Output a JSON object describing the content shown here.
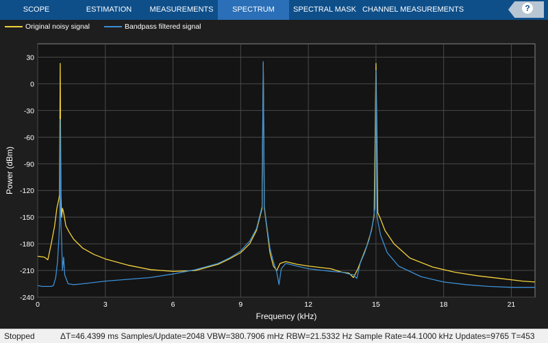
{
  "tabs": [
    {
      "label": "SCOPE",
      "active": false
    },
    {
      "label": "ESTIMATION",
      "active": false
    },
    {
      "label": "MEASUREMENTS",
      "active": false
    },
    {
      "label": "SPECTRUM",
      "active": true
    },
    {
      "label": "SPECTRAL MASK",
      "active": false
    },
    {
      "label": "CHANNEL MEASUREMENTS",
      "active": false
    }
  ],
  "help": {
    "label": "?"
  },
  "legend": [
    {
      "name": "Original noisy signal",
      "color": "#f5d33c"
    },
    {
      "name": "Bandpass filtered signal",
      "color": "#3d8fd6"
    }
  ],
  "status": {
    "state": "Stopped",
    "readout": "ΔT=46.4399 ms  Samples/Update=2048  VBW=380.7906 mHz  RBW=21.5332 Hz  Sample Rate=44.1000 kHz  Updates=9765  T=453"
  },
  "chart_data": {
    "type": "line",
    "title": "",
    "xlabel": "Frequency (kHz)",
    "ylabel": "Power (dBm)",
    "xlim": [
      0,
      22.05
    ],
    "ylim": [
      -240,
      45
    ],
    "xticks": [
      0,
      3,
      6,
      9,
      12,
      15,
      18,
      21
    ],
    "yticks": [
      30,
      0,
      -30,
      -60,
      -90,
      -120,
      -150,
      -180,
      -210,
      -240
    ],
    "grid": true,
    "legend": "top-left",
    "series": [
      {
        "name": "Original noisy signal",
        "color": "#f5d33c",
        "x": [
          0,
          0.3,
          0.45,
          0.6,
          0.75,
          0.85,
          0.92,
          0.97,
          1.0,
          1.03,
          1.06,
          1.1,
          1.15,
          1.25,
          1.4,
          1.6,
          2.0,
          2.5,
          3.0,
          4.0,
          5.0,
          6.0,
          7.0,
          8.0,
          8.5,
          9.0,
          9.4,
          9.7,
          9.85,
          9.95,
          10.0,
          10.05,
          10.15,
          10.3,
          10.45,
          10.6,
          10.75,
          11.0,
          11.5,
          12.0,
          13.0,
          13.5,
          13.8,
          14.0,
          14.2,
          14.4,
          14.6,
          14.8,
          14.92,
          15.0,
          15.08,
          15.2,
          15.4,
          15.8,
          16.5,
          17.5,
          18.5,
          19.5,
          20.5,
          21.5,
          22.05
        ],
        "y": [
          -194,
          -195,
          -198,
          -180,
          -160,
          -140,
          -132,
          -125,
          23,
          -125,
          -150,
          -140,
          -145,
          -160,
          -167,
          -175,
          -185,
          -192,
          -197,
          -204,
          -209,
          -211,
          -210,
          -203,
          -197,
          -190,
          -180,
          -165,
          -150,
          -140,
          23,
          -140,
          -160,
          -190,
          -205,
          -210,
          -202,
          -200,
          -203,
          -205,
          -208,
          -212,
          -213,
          -218,
          -208,
          -195,
          -182,
          -165,
          -148,
          23,
          -145,
          -152,
          -165,
          -180,
          -196,
          -206,
          -212,
          -216,
          -219,
          -222,
          -223
        ]
      },
      {
        "name": "Bandpass filtered signal",
        "color": "#3d8fd6",
        "x": [
          0,
          0.2,
          0.4,
          0.6,
          0.7,
          0.8,
          0.88,
          0.94,
          0.98,
          1.0,
          1.02,
          1.06,
          1.1,
          1.15,
          1.2,
          1.35,
          1.6,
          2.0,
          3.0,
          4.0,
          5.0,
          6.0,
          7.0,
          8.0,
          8.5,
          9.0,
          9.4,
          9.7,
          9.85,
          9.95,
          10.0,
          10.05,
          10.15,
          10.3,
          10.45,
          10.6,
          10.7,
          10.8,
          11.0,
          11.5,
          12.0,
          13.0,
          13.5,
          13.8,
          14.0,
          14.15,
          14.3,
          14.5,
          14.7,
          14.85,
          14.95,
          15.0,
          15.05,
          15.2,
          15.5,
          16.0,
          17.0,
          18.0,
          19.0,
          20.0,
          21.0,
          22.05
        ],
        "y": [
          -227,
          -228,
          -228,
          -228,
          -227,
          -218,
          -200,
          -175,
          -150,
          -40,
          -150,
          -175,
          -210,
          -195,
          -215,
          -225,
          -226,
          -225,
          -222,
          -220,
          -218,
          -214,
          -209,
          -202,
          -196,
          -188,
          -177,
          -163,
          -148,
          -138,
          25,
          -138,
          -158,
          -185,
          -200,
          -212,
          -226,
          -208,
          -202,
          -205,
          -208,
          -211,
          -212,
          -214,
          -215,
          -219,
          -202,
          -190,
          -175,
          -158,
          -140,
          15,
          -150,
          -170,
          -190,
          -205,
          -217,
          -223,
          -226,
          -228,
          -229,
          -229
        ]
      }
    ]
  }
}
